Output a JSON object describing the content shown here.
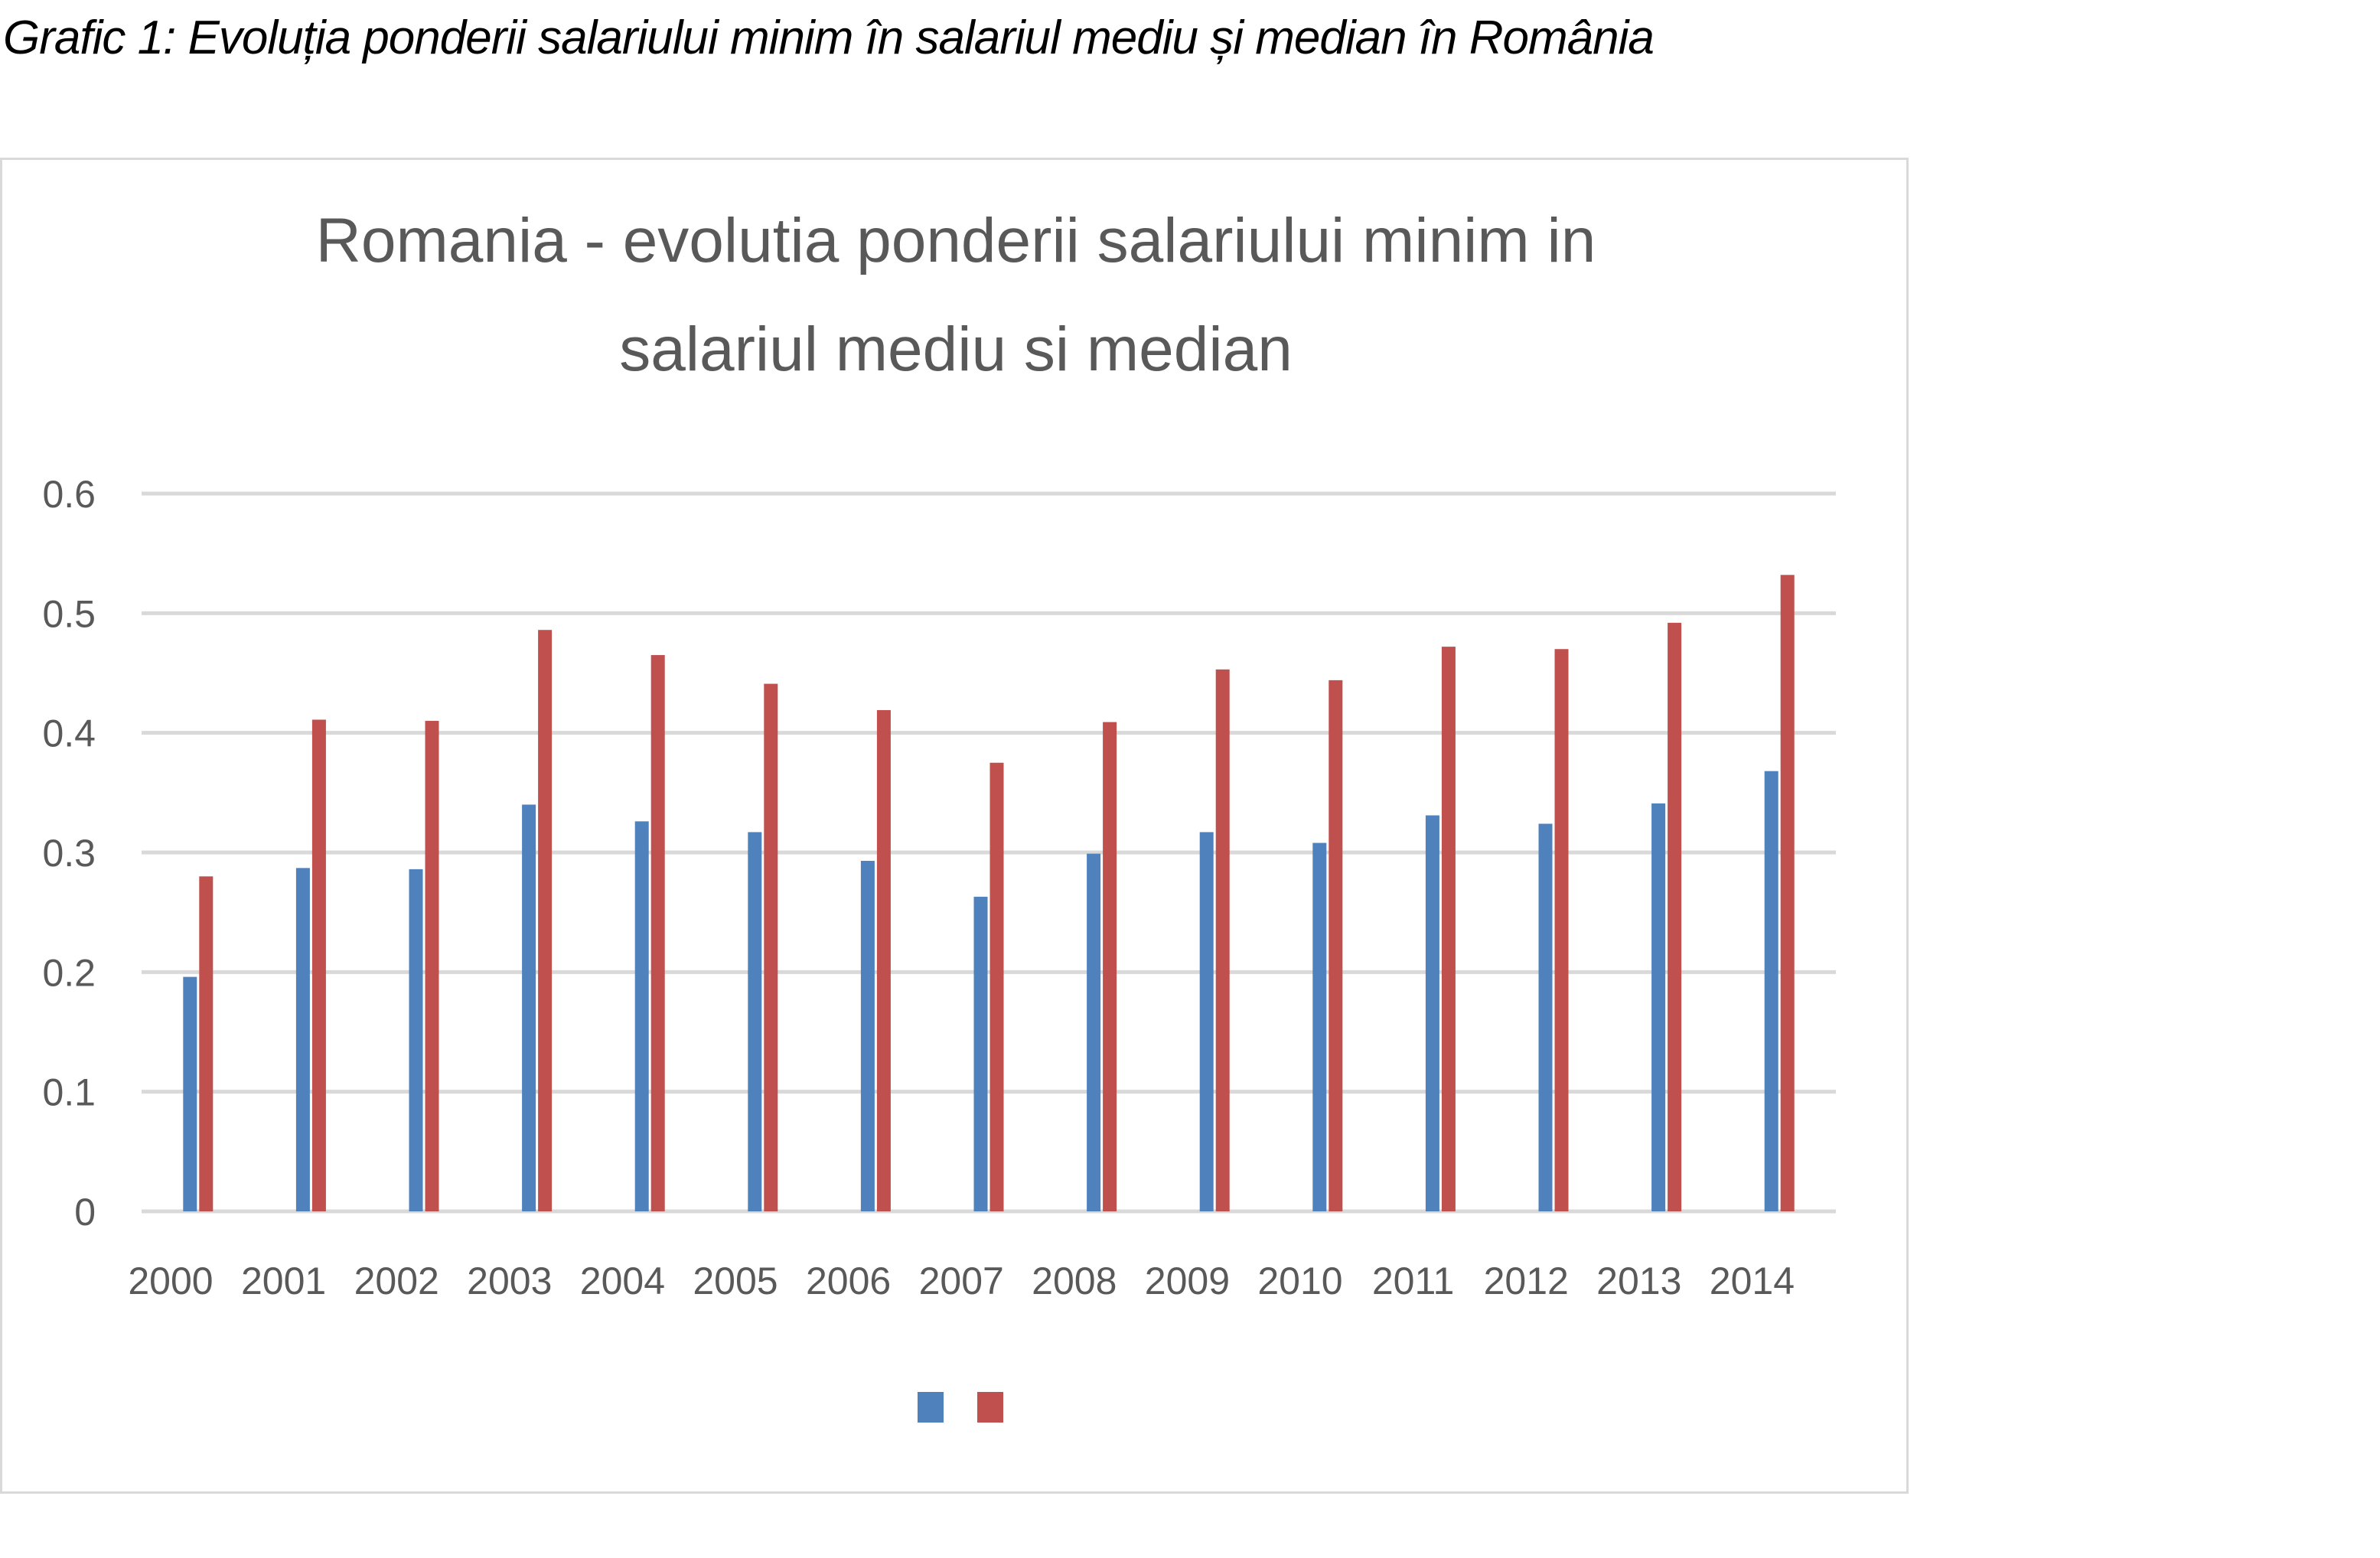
{
  "caption": "Grafic 1: Evoluția ponderii salariului minim în salariul mediu și median în România",
  "chart_data": {
    "type": "bar",
    "title_lines": [
      "Romania - evolutia ponderii salariului minim in",
      "salariul mediu si median"
    ],
    "categories": [
      "2000",
      "2001",
      "2002",
      "2003",
      "2004",
      "2005",
      "2006",
      "2007",
      "2008",
      "2009",
      "2010",
      "2011",
      "2012",
      "2013",
      "2014"
    ],
    "series": [
      {
        "color": "#4f81bd",
        "values": [
          0.196,
          0.287,
          0.286,
          0.34,
          0.326,
          0.317,
          0.293,
          0.263,
          0.299,
          0.317,
          0.308,
          0.331,
          0.324,
          0.341,
          0.368
        ]
      },
      {
        "color": "#c0504d",
        "values": [
          0.28,
          0.411,
          0.41,
          0.486,
          0.465,
          0.441,
          0.419,
          0.375,
          0.409,
          0.453,
          0.444,
          0.472,
          0.47,
          0.492,
          0.532
        ]
      }
    ],
    "yticks": [
      "0",
      "0.1",
      "0.2",
      "0.3",
      "0.4",
      "0.5",
      "0.6"
    ],
    "ylim": [
      0,
      0.6
    ],
    "grid": true,
    "legend_position": "bottom",
    "gridline_color": "#d9d9d9"
  }
}
